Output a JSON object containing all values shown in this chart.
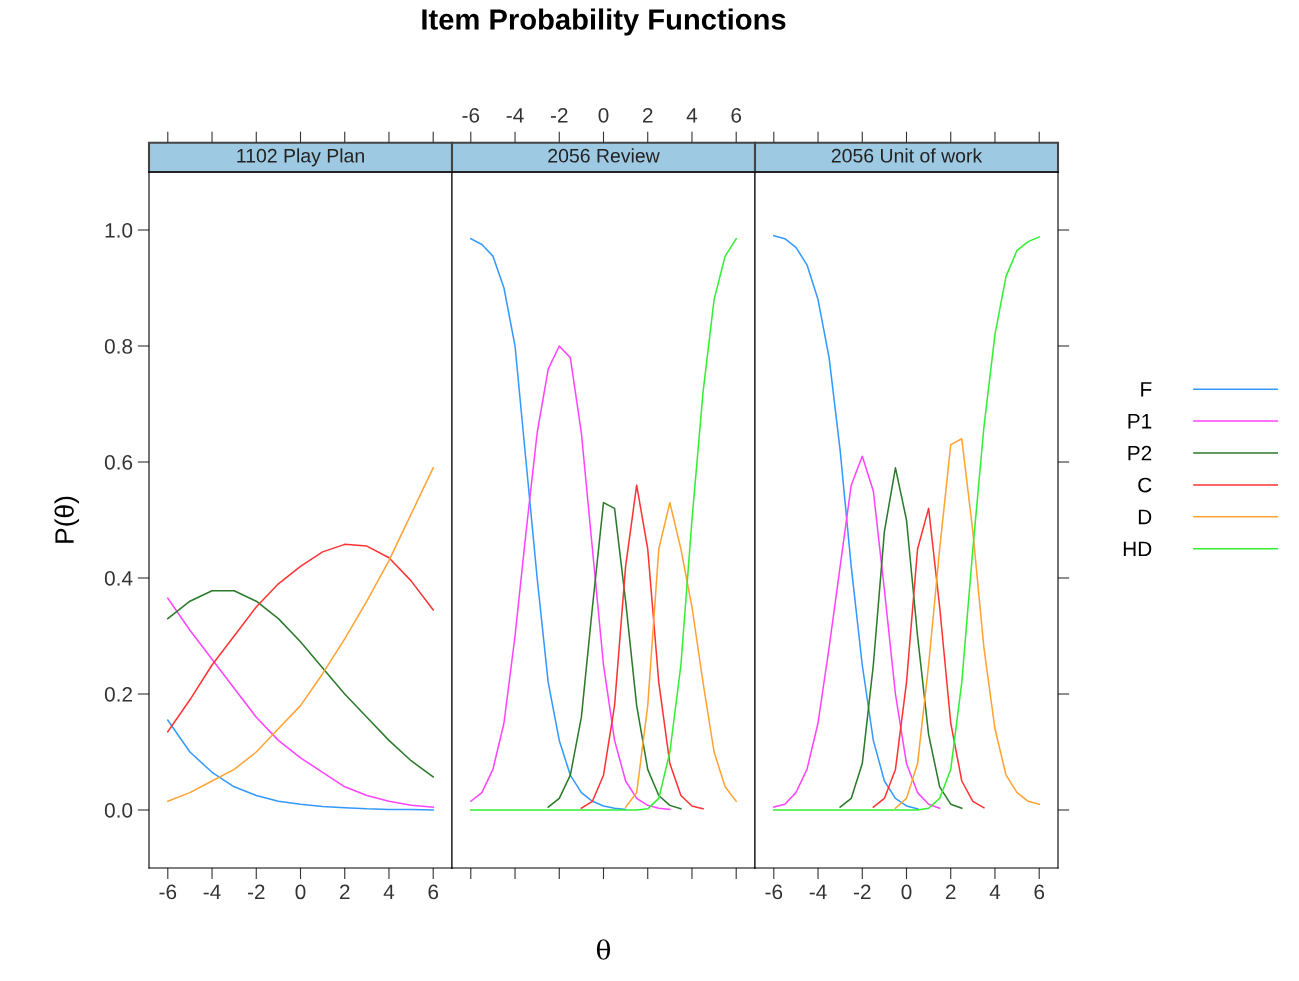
{
  "chart_data": [
    {
      "type": "line",
      "subtitle": "1102 Play Plan",
      "ylabel": "P(θ)",
      "xlim": [
        -6.85,
        6.85
      ],
      "xticks": [
        -6,
        -4,
        -2,
        0,
        2,
        4,
        6
      ],
      "ylim": [
        -0.1,
        1.1
      ],
      "yticks": [
        {
          "value": 0,
          "label": "0.0"
        },
        {
          "value": 0.2,
          "label": "0.2"
        },
        {
          "value": 0.4,
          "label": "0.4"
        },
        {
          "value": 0.6,
          "label": "0.6"
        },
        {
          "value": 0.8,
          "label": "0.8"
        },
        {
          "value": 1,
          "label": "1.0"
        }
      ],
      "grid": false,
      "x": [
        -6,
        -5,
        -4,
        -3,
        -2,
        -1,
        0,
        1,
        2,
        3,
        4,
        5,
        6
      ],
      "series": [
        {
          "color": "#3399ff",
          "values": [
            0.155,
            0.1,
            0.065,
            0.04,
            0.025,
            0.015,
            0.01,
            0.006,
            0.004,
            0.002,
            0.001,
            0.001,
            0.0
          ]
        },
        {
          "color": "#ff44ff",
          "values": [
            0.365,
            0.31,
            0.26,
            0.21,
            0.16,
            0.12,
            0.09,
            0.065,
            0.04,
            0.025,
            0.015,
            0.008,
            0.005
          ]
        },
        {
          "color": "#2a7a2a",
          "values": [
            0.33,
            0.36,
            0.378,
            0.378,
            0.36,
            0.33,
            0.29,
            0.245,
            0.2,
            0.16,
            0.12,
            0.085,
            0.057
          ]
        },
        {
          "color": "#ff3333",
          "values": [
            0.135,
            0.19,
            0.25,
            0.3,
            0.35,
            0.39,
            0.42,
            0.445,
            0.458,
            0.455,
            0.435,
            0.395,
            0.345
          ]
        },
        {
          "color": "#ffa333",
          "values": [
            0.015,
            0.03,
            0.05,
            0.07,
            0.1,
            0.14,
            0.18,
            0.235,
            0.295,
            0.36,
            0.43,
            0.51,
            0.59
          ]
        }
      ]
    },
    {
      "type": "line",
      "title": "Item Probability Functions",
      "subtitle": "2056 Review",
      "xlabel": "θ",
      "xlim": [
        -6.85,
        6.85
      ],
      "xticks": [
        {
          "value": -6,
          "label": null
        },
        {
          "value": -4,
          "label": null
        },
        {
          "value": -2,
          "label": null
        },
        {
          "value": 0,
          "label": null
        },
        {
          "value": 2,
          "label": null
        },
        {
          "value": 4,
          "label": null
        },
        {
          "value": 6,
          "label": null
        }
      ],
      "x2lim": [
        -6.85,
        6.85
      ],
      "x2ticks": [
        -6,
        -4,
        -2,
        0,
        2,
        4,
        6
      ],
      "ylim": [
        -0.1,
        1.1
      ],
      "tick_labels": false,
      "grid": false,
      "x": [
        -6,
        -5.5,
        -5,
        -4.5,
        -4,
        -3.5,
        -3,
        -2.5,
        -2,
        -1.5,
        -1,
        -0.5,
        0,
        0.5,
        1,
        1.5,
        2,
        2.5,
        3,
        3.5,
        4,
        4.5,
        5,
        5.5,
        6
      ],
      "series": [
        {
          "color": "#3399ff",
          "values": [
            0.985,
            0.975,
            0.955,
            0.9,
            0.8,
            0.6,
            0.4,
            0.22,
            0.12,
            0.06,
            0.03,
            0.015,
            0.007,
            0.003,
            0.001,
            null,
            null,
            null,
            null,
            null,
            null,
            null,
            null,
            null,
            null
          ]
        },
        {
          "color": "#ff44ff",
          "values": [
            0.015,
            0.03,
            0.07,
            0.15,
            0.3,
            0.48,
            0.65,
            0.76,
            0.8,
            0.78,
            0.65,
            0.45,
            0.25,
            0.12,
            0.05,
            0.02,
            0.008,
            0.003,
            0.001,
            null,
            null,
            null,
            null,
            null,
            null
          ]
        },
        {
          "color": "#2a7a2a",
          "values": [
            null,
            null,
            null,
            null,
            null,
            null,
            null,
            0.005,
            0.02,
            0.06,
            0.16,
            0.35,
            0.53,
            0.52,
            0.36,
            0.18,
            0.07,
            0.025,
            0.008,
            0.002,
            null,
            null,
            null,
            null,
            null
          ]
        },
        {
          "color": "#ff3333",
          "values": [
            null,
            null,
            null,
            null,
            null,
            null,
            null,
            null,
            null,
            null,
            0.003,
            0.015,
            0.06,
            0.18,
            0.42,
            0.56,
            0.45,
            0.22,
            0.08,
            0.025,
            0.007,
            0.002,
            null,
            null,
            null
          ]
        },
        {
          "color": "#ffa333",
          "values": [
            null,
            null,
            null,
            null,
            null,
            null,
            null,
            null,
            null,
            null,
            null,
            null,
            null,
            null,
            0.005,
            0.03,
            0.18,
            0.45,
            0.53,
            0.45,
            0.35,
            0.22,
            0.1,
            0.04,
            0.015
          ]
        },
        {
          "color": "#33ee33",
          "values": [
            0,
            0,
            0,
            0,
            0,
            0,
            0,
            0,
            0,
            0,
            0,
            0,
            0,
            0,
            0,
            0,
            0.002,
            0.02,
            0.1,
            0.25,
            0.5,
            0.72,
            0.88,
            0.955,
            0.985
          ]
        }
      ]
    },
    {
      "type": "line",
      "subtitle": "2056 Unit of work",
      "xlim": [
        -6.85,
        6.85
      ],
      "xticks": [
        -6,
        -4,
        -2,
        0,
        2,
        4,
        6
      ],
      "ylim": [
        -0.1,
        1.1
      ],
      "yticks": [
        {
          "value": 0,
          "label": null
        },
        {
          "value": 0.2,
          "label": null
        },
        {
          "value": 0.4,
          "label": null
        },
        {
          "value": 0.6,
          "label": null
        },
        {
          "value": 0.8,
          "label": null
        },
        {
          "value": 1,
          "label": null
        }
      ],
      "tick_labels": "x",
      "grid": false,
      "legend": "right",
      "x": [
        -6,
        -5.5,
        -5,
        -4.5,
        -4,
        -3.5,
        -3,
        -2.5,
        -2,
        -1.5,
        -1,
        -0.5,
        0,
        0.5,
        1,
        1.5,
        2,
        2.5,
        3,
        3.5,
        4,
        4.5,
        5,
        5.5,
        6
      ],
      "series": [
        {
          "name": "F",
          "color": "#3399ff",
          "values": [
            0.99,
            0.985,
            0.97,
            0.94,
            0.88,
            0.78,
            0.62,
            0.42,
            0.25,
            0.12,
            0.05,
            0.02,
            0.007,
            0.002,
            null,
            null,
            null,
            null,
            null,
            null,
            null,
            null,
            null,
            null,
            null
          ]
        },
        {
          "name": "P1",
          "color": "#ff44ff",
          "values": [
            0.005,
            0.01,
            0.03,
            0.07,
            0.15,
            0.28,
            0.42,
            0.56,
            0.61,
            0.55,
            0.38,
            0.2,
            0.08,
            0.03,
            0.01,
            0.003,
            null,
            null,
            null,
            null,
            null,
            null,
            null,
            null,
            null
          ]
        },
        {
          "name": "P2",
          "color": "#2a7a2a",
          "values": [
            null,
            null,
            null,
            null,
            null,
            null,
            0.005,
            0.02,
            0.08,
            0.25,
            0.48,
            0.59,
            0.5,
            0.3,
            0.13,
            0.04,
            0.01,
            0.003,
            null,
            null,
            null,
            null,
            null,
            null,
            null
          ]
        },
        {
          "name": "C",
          "color": "#ff3333",
          "values": [
            null,
            null,
            null,
            null,
            null,
            null,
            null,
            null,
            null,
            0.005,
            0.02,
            0.07,
            0.22,
            0.45,
            0.52,
            0.35,
            0.15,
            0.05,
            0.015,
            0.004,
            null,
            null,
            null,
            null,
            null
          ]
        },
        {
          "name": "D",
          "color": "#ffa333",
          "values": [
            null,
            null,
            null,
            null,
            null,
            null,
            null,
            null,
            null,
            null,
            null,
            0.003,
            0.02,
            0.08,
            0.25,
            0.45,
            0.63,
            0.64,
            0.48,
            0.28,
            0.14,
            0.06,
            0.03,
            0.015,
            0.01
          ]
        },
        {
          "name": "HD",
          "color": "#33ee33",
          "values": [
            0,
            0,
            0,
            0,
            0,
            0,
            0,
            0,
            0,
            0,
            0,
            0,
            0,
            0,
            0.003,
            0.02,
            0.07,
            0.22,
            0.45,
            0.66,
            0.82,
            0.92,
            0.965,
            0.98,
            0.988
          ]
        }
      ]
    }
  ]
}
